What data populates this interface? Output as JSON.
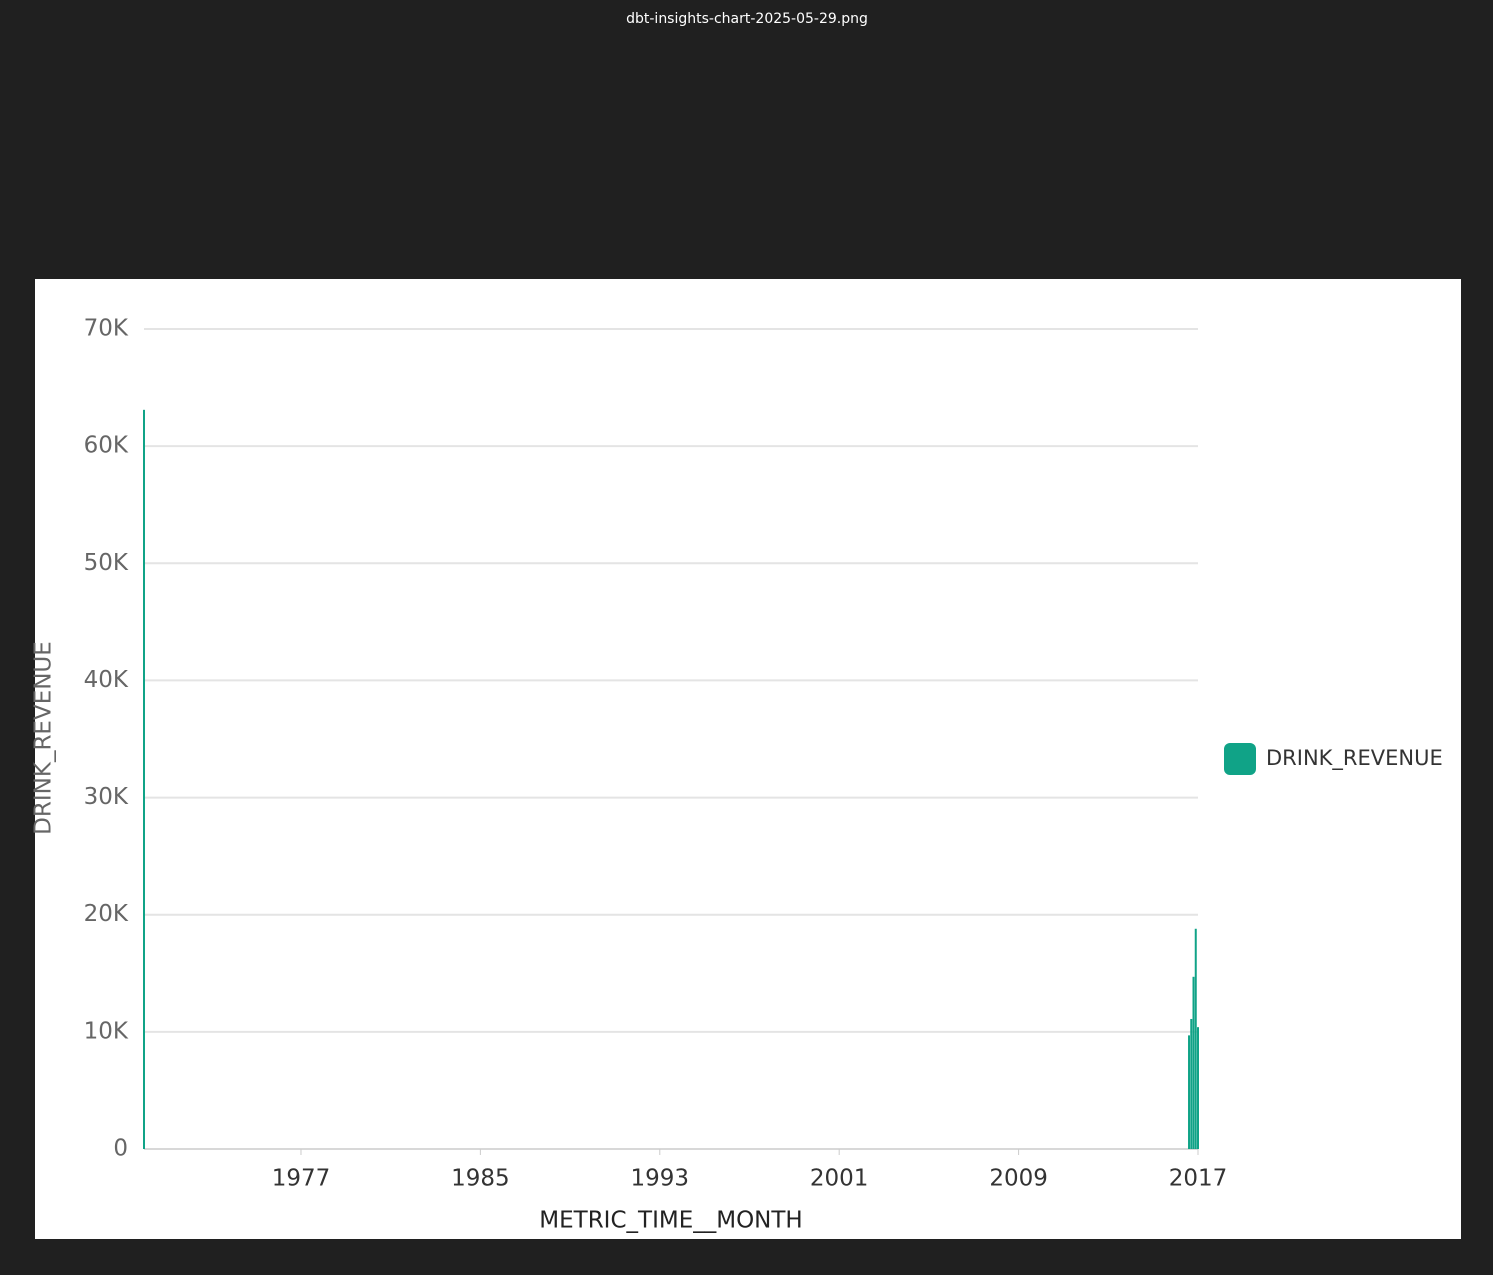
{
  "window_title": "dbt-insights-chart-2025-05-29.png",
  "chart_data": {
    "type": "bar",
    "x_label": "METRIC_TIME__MONTH",
    "y_label": "DRINK_REVENUE",
    "x": [
      1970,
      2016.6,
      2016.7,
      2016.8,
      2016.9,
      2017.0
    ],
    "series": [
      {
        "name": "DRINK_REVENUE",
        "color": "#10a387",
        "values": [
          63100,
          9700,
          11100,
          14700,
          18800,
          10400
        ]
      }
    ],
    "xlim": [
      1970,
      2017
    ],
    "xticks": [
      1977,
      1985,
      1993,
      2001,
      2009,
      2017
    ],
    "ylim": [
      0,
      70000
    ],
    "yticks": [
      0,
      {
        "value": 10000,
        "label": "10K"
      },
      {
        "value": 20000,
        "label": "20K"
      },
      {
        "value": 30000,
        "label": "30K"
      },
      {
        "value": 40000,
        "label": "40K"
      },
      {
        "value": 50000,
        "label": "50K"
      },
      {
        "value": 60000,
        "label": "60K"
      },
      {
        "value": 70000,
        "label": "70K"
      }
    ],
    "grid": true,
    "legend": "right"
  }
}
